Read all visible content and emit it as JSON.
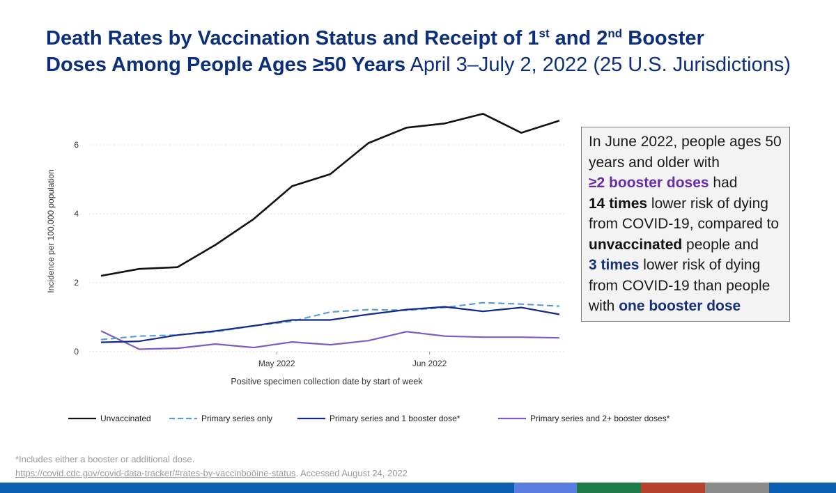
{
  "title": {
    "line1_pre": "Death Rates by Vaccination Status and Receipt of 1",
    "sup1": "st",
    "line1_mid": " and 2",
    "sup2": "nd",
    "line1_post": " Booster",
    "line2_bold": "Doses Among People Ages ≥50 Years",
    "line2_sub": " April 3–July 2, 2022 (25 U.S. Jurisdictions)"
  },
  "chart_data": {
    "type": "line",
    "ylabel": "Incidence per 100,000 population",
    "xlabel": "Positive specimen collection date by start of week",
    "ylim": [
      0,
      7.2
    ],
    "yticks": [
      "0",
      "2",
      "4",
      "6"
    ],
    "xtick_labels": [
      "May 2022",
      "Jun 2022"
    ],
    "xtick_positions": [
      4.6,
      8.6
    ],
    "grid": "dotted horizontal",
    "x": [
      0,
      1,
      2,
      3,
      4,
      5,
      6,
      7,
      8,
      9,
      10,
      11,
      12
    ],
    "series": [
      {
        "name": "Unvaccinated",
        "style": "solid",
        "color": "#111111",
        "values": [
          2.2,
          2.4,
          2.45,
          3.1,
          3.85,
          4.8,
          5.15,
          6.05,
          6.5,
          6.62,
          6.9,
          6.35,
          6.7
        ]
      },
      {
        "name": "Primary series only",
        "style": "dashed",
        "color": "#5b9bd5",
        "values": [
          0.35,
          0.45,
          0.48,
          0.58,
          0.75,
          0.88,
          1.15,
          1.22,
          1.2,
          1.28,
          1.42,
          1.38,
          1.32
        ]
      },
      {
        "name": "Primary series and 1 booster dose*",
        "style": "solid",
        "color": "#13298a",
        "values": [
          0.27,
          0.3,
          0.48,
          0.6,
          0.75,
          0.92,
          0.92,
          1.08,
          1.22,
          1.3,
          1.17,
          1.28,
          1.08
        ]
      },
      {
        "name": "Primary series and 2+ booster doses*",
        "style": "solid",
        "color": "#7b5cc5",
        "values": [
          0.6,
          0.07,
          0.1,
          0.22,
          0.12,
          0.28,
          0.2,
          0.32,
          0.58,
          0.45,
          0.42,
          0.42,
          0.4
        ]
      }
    ]
  },
  "callout": {
    "t1": "In June 2022, people ages 50 years and older with",
    "t2": "≥2 booster doses",
    "t3": " had ",
    "t4": "14 times",
    "t5": " lower risk of dying from COVID-19, compared to ",
    "t6": "unvaccinated",
    "t7": " people and ",
    "t8": "3 times",
    "t9": " lower risk of dying from COVID-19 than people with ",
    "t10": "one booster dose"
  },
  "footnote": {
    "note": "*Includes either a booster or additional dose.",
    "link": "https://covid.cdc.gov/covid-data-tracker/#rates-by-vaccinboöine-status",
    "accessed": ". Accessed August 24, 2022"
  },
  "colors": {
    "title": "#0b2f7a",
    "bar_main": "#0b5db0",
    "bar_segments": [
      "#5b7fe0",
      "#1f7a4a",
      "#b8432d",
      "#8a8a8a"
    ]
  }
}
